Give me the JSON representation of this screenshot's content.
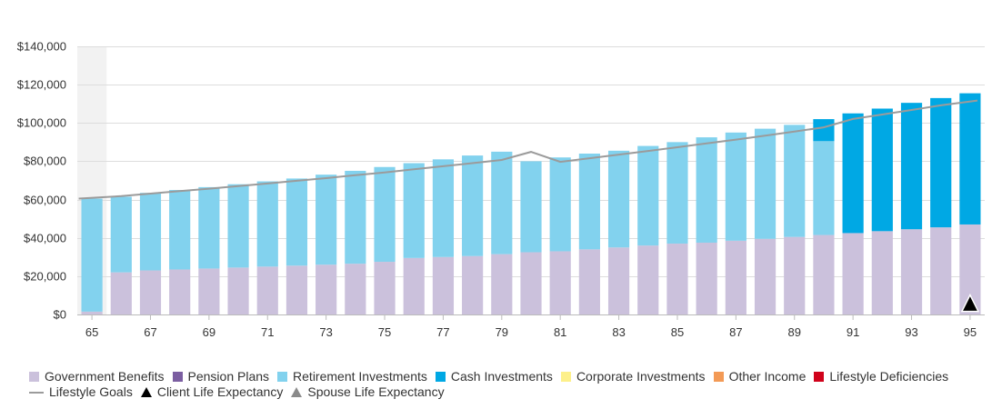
{
  "chart_data": {
    "type": "bar",
    "stacked": true,
    "title": "",
    "xlabel": "",
    "ylabel": "",
    "ylim": [
      0,
      140000
    ],
    "yticks": [
      0,
      20000,
      40000,
      60000,
      80000,
      100000,
      120000,
      140000
    ],
    "ytick_labels": [
      "$0",
      "$20,000",
      "$40,000",
      "$60,000",
      "$80,000",
      "$100,000",
      "$120,000",
      "$140,000"
    ],
    "grid": true,
    "legend_position": "bottom",
    "x": [
      65,
      66,
      67,
      68,
      69,
      70,
      71,
      72,
      73,
      74,
      75,
      76,
      77,
      78,
      79,
      80,
      81,
      82,
      83,
      84,
      85,
      86,
      87,
      88,
      89,
      90,
      91,
      92,
      93,
      94,
      95
    ],
    "xtick_labels": [
      "65",
      "67",
      "69",
      "71",
      "73",
      "75",
      "77",
      "79",
      "81",
      "83",
      "85",
      "87",
      "89",
      "91",
      "93",
      "95"
    ],
    "series": [
      {
        "name": "Government Benefits",
        "color": "#cbc1dc",
        "values": [
          1500,
          22000,
          23000,
          23500,
          24000,
          24500,
          25000,
          25500,
          26000,
          26500,
          27500,
          29500,
          30000,
          30500,
          31500,
          32500,
          33000,
          34000,
          35000,
          36000,
          37000,
          37500,
          38500,
          39500,
          40500,
          41500,
          42500,
          43500,
          44500,
          45500,
          47000
        ]
      },
      {
        "name": "Pension Plans",
        "color": "#7b5ea1",
        "values": [
          0,
          0,
          0,
          0,
          0,
          0,
          0,
          0,
          0,
          0,
          0,
          0,
          0,
          0,
          0,
          0,
          0,
          0,
          0,
          0,
          0,
          0,
          0,
          0,
          0,
          0,
          0,
          0,
          0,
          0,
          0
        ]
      },
      {
        "name": "Retirement Investments",
        "color": "#82d2ee",
        "values": [
          59000,
          39500,
          40500,
          41500,
          42500,
          43500,
          44500,
          45500,
          47000,
          48500,
          49500,
          49500,
          51000,
          52500,
          53500,
          47500,
          49000,
          50000,
          50500,
          52000,
          53000,
          55000,
          56500,
          57500,
          58500,
          49000,
          0,
          0,
          0,
          0,
          0
        ]
      },
      {
        "name": "Cash Investments",
        "color": "#00a8e4",
        "values": [
          0,
          0,
          0,
          0,
          0,
          0,
          0,
          0,
          0,
          0,
          0,
          0,
          0,
          0,
          0,
          0,
          0,
          0,
          0,
          0,
          0,
          0,
          0,
          0,
          0,
          11500,
          62500,
          64000,
          66000,
          67500,
          68500
        ]
      },
      {
        "name": "Corporate Investments",
        "color": "#fdf08a",
        "values": [
          0,
          0,
          0,
          0,
          0,
          0,
          0,
          0,
          0,
          0,
          0,
          0,
          0,
          0,
          0,
          0,
          0,
          0,
          0,
          0,
          0,
          0,
          0,
          0,
          0,
          0,
          0,
          0,
          0,
          0,
          0
        ]
      },
      {
        "name": "Other Income",
        "color": "#f39a56",
        "values": [
          0,
          0,
          0,
          0,
          0,
          0,
          0,
          0,
          0,
          0,
          0,
          0,
          0,
          0,
          0,
          0,
          0,
          0,
          0,
          0,
          0,
          0,
          0,
          0,
          0,
          0,
          0,
          0,
          0,
          0,
          0
        ]
      },
      {
        "name": "Lifestyle Deficiencies",
        "color": "#d0021b",
        "values": [
          0,
          0,
          0,
          0,
          0,
          0,
          0,
          0,
          0,
          0,
          0,
          0,
          0,
          0,
          0,
          0,
          0,
          0,
          0,
          0,
          0,
          0,
          0,
          0,
          0,
          0,
          0,
          0,
          0,
          0,
          0
        ]
      }
    ],
    "lifestyle_goals": {
      "name": "Lifestyle Goals",
      "color": "#9b9b9b",
      "values": [
        60500,
        61800,
        63100,
        64400,
        65700,
        67000,
        68400,
        69800,
        71200,
        72700,
        74200,
        75800,
        77400,
        79000,
        80700,
        84900,
        79700,
        81600,
        83500,
        85400,
        87300,
        89300,
        91300,
        93400,
        95500,
        97700,
        102100,
        104400,
        106800,
        109200,
        111700
      ]
    },
    "markers": [
      {
        "name": "Client Life Expectancy",
        "color": "#000000",
        "x": 95,
        "y": 4000
      }
    ],
    "legend": [
      {
        "name": "Government Benefits",
        "kind": "square",
        "color": "#cbc1dc"
      },
      {
        "name": "Pension Plans",
        "kind": "square",
        "color": "#7b5ea1"
      },
      {
        "name": "Retirement Investments",
        "kind": "square",
        "color": "#82d2ee"
      },
      {
        "name": "Cash Investments",
        "kind": "square",
        "color": "#00a8e4"
      },
      {
        "name": "Corporate Investments",
        "kind": "square",
        "color": "#fdf08a"
      },
      {
        "name": "Other Income",
        "kind": "square",
        "color": "#f39a56"
      },
      {
        "name": "Lifestyle Deficiencies",
        "kind": "square",
        "color": "#d0021b"
      },
      {
        "name": "Lifestyle Goals",
        "kind": "line",
        "color": "#9b9b9b"
      },
      {
        "name": "Client Life Expectancy",
        "kind": "triangle",
        "color": "#000000"
      },
      {
        "name": "Spouse Life Expectancy",
        "kind": "triangle",
        "color": "#8a8a8a"
      }
    ],
    "highlight_band": {
      "x": 65,
      "color": "#f2f2f2"
    }
  }
}
